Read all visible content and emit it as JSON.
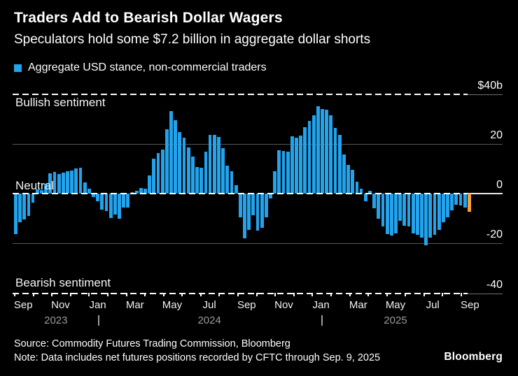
{
  "header": {
    "title": "Traders Add to Bearish Dollar Wagers",
    "subtitle": "Speculators hold some $7.2 billion in aggregate dollar shorts"
  },
  "legend": {
    "label": "Aggregate USD stance, non-commercial traders",
    "swatch_color": "#22A3EC"
  },
  "chart_data": {
    "type": "bar",
    "title": "Traders Add to Bearish Dollar Wagers",
    "subtitle": "Speculators hold some $7.2 billion in aggregate dollar shorts",
    "series_name": "Aggregate USD stance, non-commercial traders",
    "unit": "$ billions",
    "frequency": "weekly",
    "grid": "horizontal",
    "legend_position": "top-left",
    "ylim": [
      -40,
      40
    ],
    "y_ticks": [
      {
        "label": "$40b",
        "value": 40,
        "style": "dashed"
      },
      {
        "label": "20",
        "value": 20,
        "style": "solid"
      },
      {
        "label": "0",
        "value": 0,
        "style": "dashed"
      },
      {
        "label": "-20",
        "value": -20,
        "style": "solid"
      },
      {
        "label": "-40",
        "value": -40,
        "style": "dashed"
      }
    ],
    "region_labels": [
      {
        "text": "Bullish sentiment",
        "anchor": "below_top_line"
      },
      {
        "text": "Neutral",
        "anchor": "above_zero_line"
      },
      {
        "text": "Bearish sentiment",
        "anchor": "above_bottom_line"
      }
    ],
    "x_tick_labels": [
      {
        "label": "Sep",
        "month_index": 0
      },
      {
        "label": "Nov",
        "month_index": 2
      },
      {
        "label": "Jan",
        "month_index": 4
      },
      {
        "label": "Mar",
        "month_index": 6
      },
      {
        "label": "May",
        "month_index": 8
      },
      {
        "label": "Jul",
        "month_index": 10
      },
      {
        "label": "Sep",
        "month_index": 12
      },
      {
        "label": "Nov",
        "month_index": 14
      },
      {
        "label": "Jan",
        "month_index": 16
      },
      {
        "label": "Mar",
        "month_index": 18
      },
      {
        "label": "May",
        "month_index": 20
      },
      {
        "label": "Jul",
        "month_index": 22
      },
      {
        "label": "Sep",
        "month_index": 24
      }
    ],
    "years": [
      {
        "label": "2023",
        "center_month": 2.25
      },
      {
        "label": "2024",
        "center_month": 10.5
      },
      {
        "label": "2025",
        "center_month": 20.5
      }
    ],
    "year_dividers_month": [
      4.5,
      16.5
    ],
    "values": [
      -16.4,
      -11.5,
      -10.3,
      -9.0,
      -3.6,
      1.6,
      1.4,
      3.9,
      8.2,
      8.6,
      8.0,
      8.4,
      8.9,
      9.3,
      10.0,
      10.5,
      4.6,
      2.1,
      -1.4,
      -3.1,
      -6.4,
      -7.0,
      -9.7,
      -8.5,
      -10.1,
      -5.6,
      -5.5,
      0.7,
      1.1,
      2.3,
      2.0,
      7.2,
      13.9,
      16.2,
      17.7,
      25.8,
      33.1,
      29.6,
      24.6,
      22.5,
      18.6,
      14.8,
      10.8,
      10.5,
      16.9,
      23.5,
      23.7,
      22.7,
      18.3,
      11.3,
      8.9,
      3.3,
      -9.6,
      -18.0,
      -14.7,
      -8.6,
      -15.0,
      -13.8,
      -9.6,
      -2.1,
      9.0,
      17.4,
      17.2,
      16.9,
      23.0,
      22.5,
      23.4,
      26.7,
      29.3,
      31.3,
      35.0,
      34.1,
      33.7,
      31.5,
      26.4,
      23.6,
      15.6,
      11.4,
      9.5,
      4.8,
      2.0,
      -3.1,
      1.1,
      -5.9,
      -10.0,
      -13.3,
      -16.3,
      -16.8,
      -16.1,
      -11.0,
      -12.8,
      -13.3,
      -16.1,
      -16.6,
      -17.7,
      -20.7,
      -17.7,
      -16.6,
      -14.7,
      -11.5,
      -9.6,
      -6.8,
      -4.4,
      -4.9,
      -5.6,
      -7.2
    ],
    "highlight_index": 105,
    "colors": {
      "bar": "#22A3EC",
      "highlight": "#FCA033",
      "grid": "#595959",
      "dashed_line": "#FFFFFF",
      "background": "#000000"
    }
  },
  "footer": {
    "source": "Source: Commodity Futures Trading Commission, Bloomberg",
    "note": "Note: Data includes net futures positions recorded by CFTC through Sep. 9, 2025",
    "logo": "Bloomberg"
  }
}
